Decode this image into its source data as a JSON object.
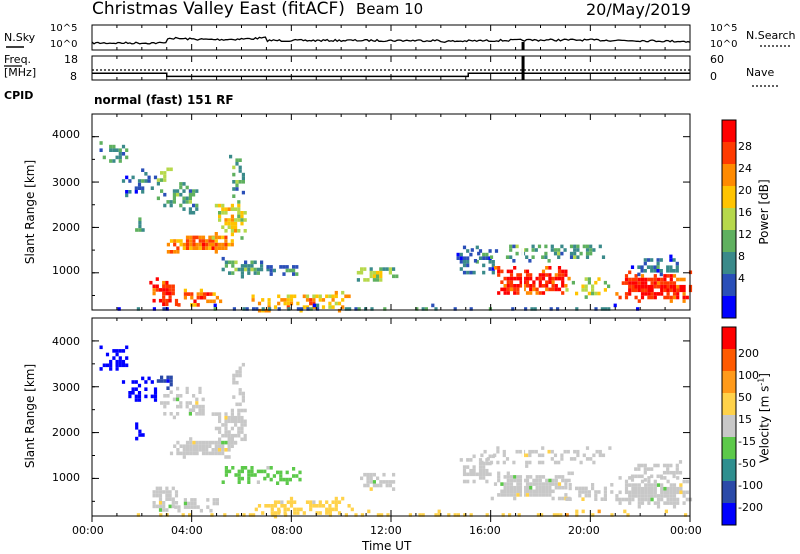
{
  "header": {
    "station": "Christmas Valley East (fitACF)",
    "beam": "Beam 10",
    "date": "20/May/2019"
  },
  "colors": {
    "power": [
      "#0000ff",
      "#2a4fb8",
      "#3a8a8a",
      "#5fb05f",
      "#b6d84b",
      "#ffc400",
      "#ff8a00",
      "#ff3a00",
      "#ff0000"
    ],
    "velocity": [
      "#0000ff",
      "#2b4aa8",
      "#2f8f8f",
      "#5cc94a",
      "#c8c8c8",
      "#ffd24a",
      "#ff9a1a",
      "#ff5a00",
      "#ff0000"
    ]
  },
  "chart_data": [
    {
      "type": "line",
      "name": "noise",
      "left_label": "N.Sky",
      "right_label": "N.Search",
      "left_ticks": [
        "10^5",
        "10^0"
      ],
      "right_ticks": [
        "10^5",
        "10^0"
      ]
    },
    {
      "type": "line",
      "name": "frequency-nave",
      "left_label_line1": "Freq.",
      "left_label_line2": "[MHz]",
      "left_ticks": [
        18,
        8
      ],
      "right_label": "Nave",
      "right_ticks": [
        60,
        0
      ],
      "cpid_label": "CPID",
      "cpid_text": "normal (fast) 151 RF",
      "freq_steps": [
        [
          0,
          10.8
        ],
        [
          3.0,
          9.5
        ],
        [
          15.1,
          10.8
        ],
        [
          24,
          10.8
        ]
      ]
    },
    {
      "type": "heatmap",
      "name": "power",
      "ylabel": "Slant Range [km]",
      "yticks": [
        1000,
        2000,
        3000,
        4000
      ],
      "ylim": [
        180,
        4500
      ],
      "colorbar_label": "Power [dB]",
      "colorbar_ticks": [
        "4",
        "8",
        "12",
        "16",
        "20",
        "24",
        "28"
      ]
    },
    {
      "type": "heatmap",
      "name": "velocity",
      "ylabel": "Slant Range [km]",
      "yticks": [
        1000,
        2000,
        3000,
        4000
      ],
      "ylim": [
        180,
        4500
      ],
      "colorbar_label": "Velocity [m s^-1]",
      "colorbar_ticks": [
        "200",
        "100",
        "50",
        "15",
        "-15",
        "-50",
        "-100",
        "-200"
      ]
    }
  ],
  "xaxis": {
    "label": "Time UT",
    "ticks": [
      "00:00",
      "04:00",
      "08:00",
      "12:00",
      "16:00",
      "20:00",
      "00:00"
    ],
    "xlim": [
      0,
      24
    ]
  }
}
